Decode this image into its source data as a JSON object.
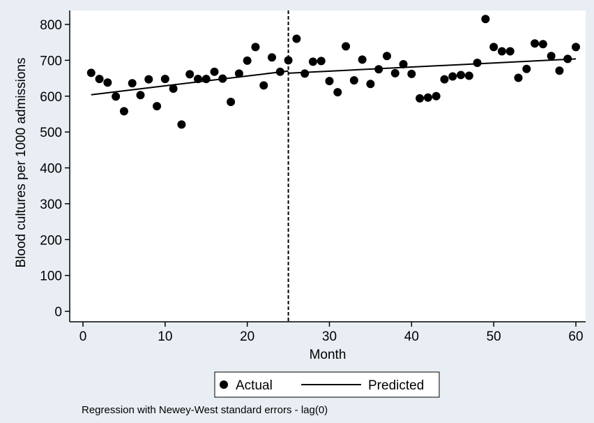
{
  "chart_data": {
    "type": "scatter",
    "xlabel": "Month",
    "ylabel": "Blood cultures per 1000 admissions",
    "xlim": [
      0,
      60
    ],
    "ylim": [
      0,
      800
    ],
    "xticks": [
      0,
      10,
      20,
      30,
      40,
      50,
      60
    ],
    "yticks": [
      0,
      100,
      200,
      300,
      400,
      500,
      600,
      700,
      800
    ],
    "grid": false,
    "legend_position": "bottom",
    "intervention_month": 25,
    "series": [
      {
        "name": "Actual",
        "kind": "points",
        "x": [
          1,
          2,
          3,
          4,
          5,
          6,
          7,
          8,
          9,
          10,
          11,
          12,
          13,
          14,
          15,
          16,
          17,
          18,
          19,
          20,
          21,
          22,
          23,
          24,
          25,
          26,
          27,
          28,
          29,
          30,
          31,
          32,
          33,
          34,
          35,
          36,
          37,
          38,
          39,
          40,
          41,
          42,
          43,
          44,
          45,
          46,
          47,
          48,
          49,
          50,
          51,
          52,
          53,
          54,
          55,
          56,
          57,
          58,
          59,
          60
        ],
        "y": [
          665,
          648,
          638,
          599,
          558,
          636,
          603,
          647,
          572,
          648,
          621,
          521,
          661,
          648,
          648,
          668,
          649,
          584,
          663,
          699,
          737,
          630,
          708,
          668,
          700,
          760,
          663,
          696,
          698,
          642,
          611,
          739,
          644,
          702,
          634,
          675,
          712,
          664,
          689,
          662,
          594,
          596,
          600,
          647,
          655,
          659,
          657,
          693,
          815,
          737,
          725,
          725,
          651,
          676,
          747,
          745,
          712,
          671,
          704,
          737
        ]
      },
      {
        "name": "Predicted",
        "kind": "line",
        "segments": [
          {
            "x": [
              1,
              25
            ],
            "y": [
              604,
              670
            ]
          },
          {
            "x": [
              25,
              60
            ],
            "y": [
              664,
              704
            ]
          }
        ]
      }
    ],
    "note": "Regression with Newey-West standard errors - lag(0)"
  }
}
